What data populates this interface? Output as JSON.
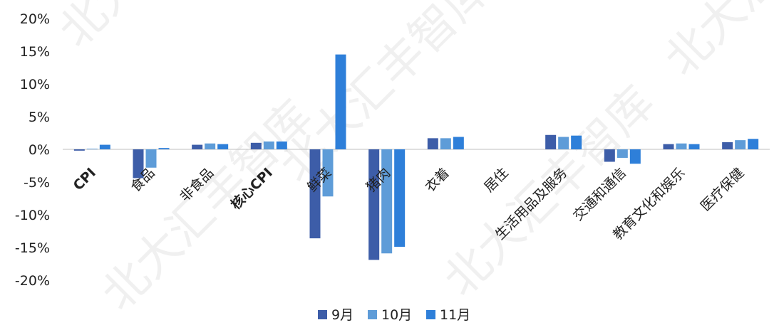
{
  "chart_data": {
    "type": "bar",
    "categories": [
      "CPI",
      "食品",
      "非食品",
      "核心CPI",
      "鲜菜",
      "猪肉",
      "衣着",
      "居住",
      "生活用品及服务",
      "交通和通信",
      "教育文化和娱乐",
      "医疗保健"
    ],
    "series": [
      {
        "name": "9月",
        "color": "#3D5DA8",
        "values": [
          -0.2,
          -4.4,
          0.7,
          1.0,
          -13.6,
          -16.9,
          1.7,
          0.0,
          2.2,
          -1.9,
          0.8,
          1.1
        ]
      },
      {
        "name": "10月",
        "color": "#5E9CD8",
        "values": [
          0.1,
          -2.8,
          0.9,
          1.2,
          -7.2,
          -15.9,
          1.7,
          0.0,
          1.9,
          -1.3,
          0.9,
          1.4
        ]
      },
      {
        "name": "11月",
        "color": "#2E7FD9",
        "values": [
          0.7,
          0.2,
          0.8,
          1.2,
          14.5,
          -14.9,
          1.9,
          0.0,
          2.1,
          -2.2,
          0.8,
          1.6
        ]
      }
    ],
    "yticks": [
      "20%",
      "15%",
      "10%",
      "5%",
      "0%",
      "-5%",
      "-10%",
      "-15%",
      "-20%"
    ],
    "ylim": [
      -20,
      20
    ],
    "grid": false,
    "legend_position": "bottom",
    "title": "",
    "xlabel": "",
    "ylabel": ""
  },
  "watermark": "北大汇丰智库"
}
